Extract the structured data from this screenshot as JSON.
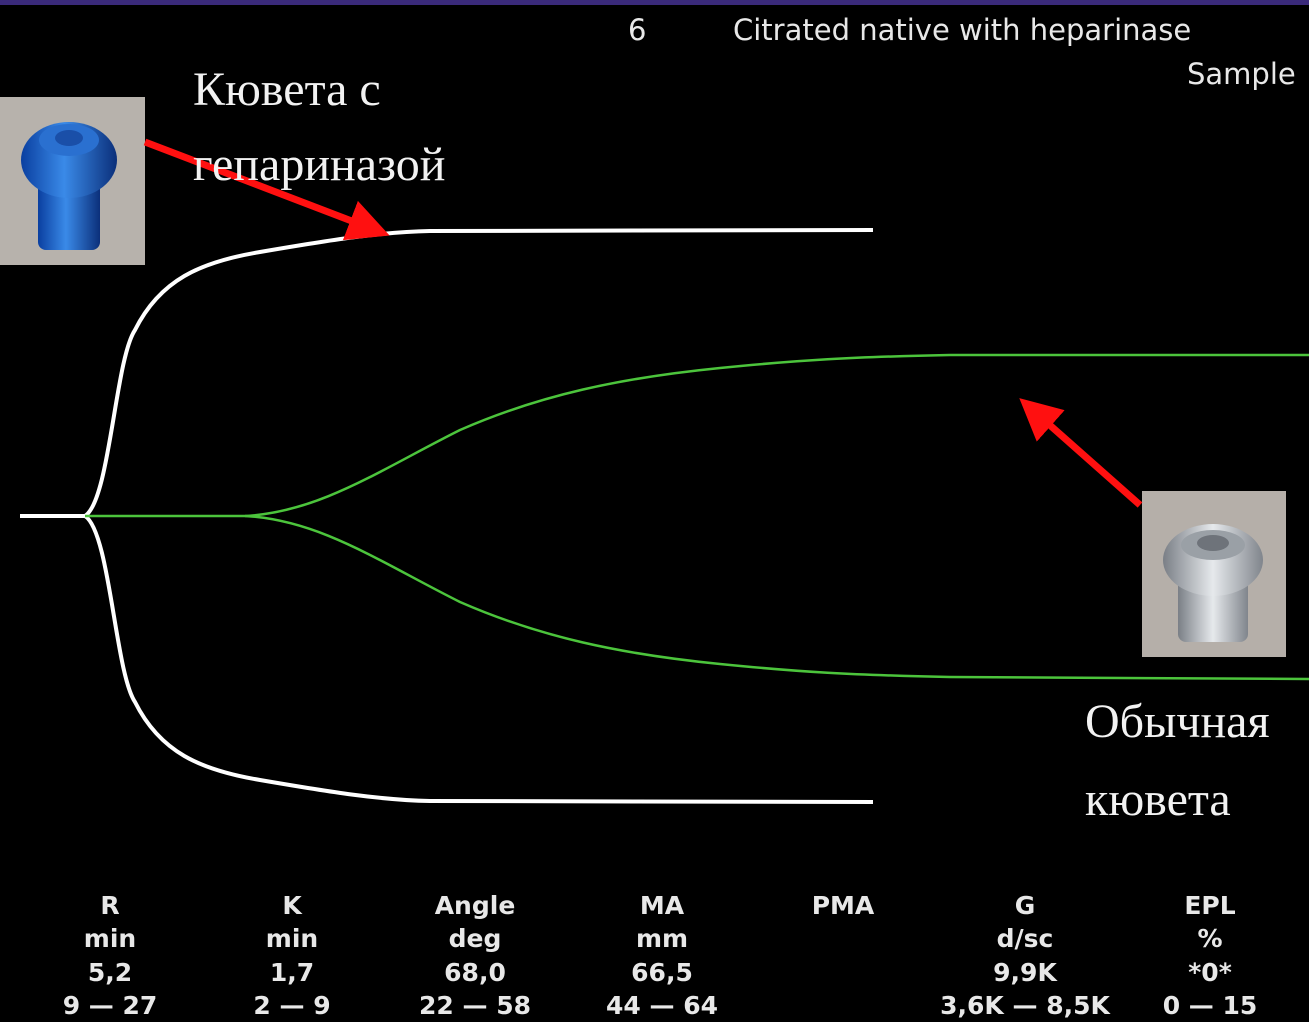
{
  "header": {
    "number": "6",
    "title": "Citrated native with heparinase",
    "subtitle": "Sample"
  },
  "annotations": [
    {
      "lines": [
        "Кювета с",
        "гепариназой"
      ]
    },
    {
      "lines": [
        "Обычная",
        "кювета"
      ]
    }
  ],
  "parameters": [
    {
      "name": "R",
      "unit": "min",
      "value": "5,2",
      "range": "9 — 27"
    },
    {
      "name": "K",
      "unit": "min",
      "value": "1,7",
      "range": "2 — 9"
    },
    {
      "name": "Angle",
      "unit": "deg",
      "value": "68,0",
      "range": "22 — 58"
    },
    {
      "name": "MA",
      "unit": "mm",
      "value": "66,5",
      "range": "44 — 64"
    },
    {
      "name": "PMA"
    },
    {
      "name": "G",
      "unit": "d/sc",
      "value": "9,9K",
      "range": "3,6K — 8,5K"
    },
    {
      "name": "EPL",
      "unit": "%",
      "value": "*0*",
      "range": "0 — 15"
    }
  ]
}
